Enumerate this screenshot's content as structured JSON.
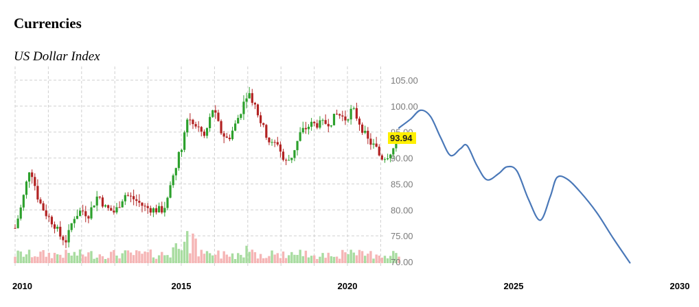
{
  "page": {
    "title": "Currencies",
    "subtitle": "US Dollar Index"
  },
  "chart_data": {
    "type": "candlestick",
    "title": "US Dollar Index",
    "xlabel": "",
    "ylabel": "",
    "xlim": [
      2010,
      2030
    ],
    "ylim": [
      70,
      105
    ],
    "grid": true,
    "x_ticks": [
      "2010",
      "2015",
      "2020",
      "2025",
      "2030"
    ],
    "y_ticks": [
      "105.00",
      "100.00",
      "95.00",
      "90.00",
      "85.00",
      "80.00",
      "75.00",
      "70.00"
    ],
    "last_value_label": "93.94",
    "colors": {
      "up": "#2ca02c",
      "down": "#b22222",
      "volume_up": "#a8dca0",
      "volume_down": "#f5b5b5",
      "forecast": "#4a78b8",
      "last_value_bg": "#fff000"
    },
    "price_anchors": [
      [
        2010.0,
        76.5
      ],
      [
        2010.2,
        81.0
      ],
      [
        2010.45,
        88.5
      ],
      [
        2010.7,
        82.0
      ],
      [
        2010.9,
        79.5
      ],
      [
        2011.2,
        77.0
      ],
      [
        2011.35,
        75.0
      ],
      [
        2011.55,
        74.0
      ],
      [
        2011.75,
        78.5
      ],
      [
        2012.0,
        80.0
      ],
      [
        2012.2,
        79.0
      ],
      [
        2012.5,
        83.0
      ],
      [
        2012.7,
        80.5
      ],
      [
        2013.0,
        79.5
      ],
      [
        2013.3,
        83.0
      ],
      [
        2013.6,
        82.0
      ],
      [
        2013.9,
        80.5
      ],
      [
        2014.2,
        80.0
      ],
      [
        2014.45,
        80.0
      ],
      [
        2014.6,
        82.0
      ],
      [
        2014.8,
        88.0
      ],
      [
        2015.0,
        92.0
      ],
      [
        2015.2,
        98.0
      ],
      [
        2015.5,
        96.0
      ],
      [
        2015.7,
        94.0
      ],
      [
        2015.95,
        99.5
      ],
      [
        2016.2,
        95.0
      ],
      [
        2016.4,
        93.5
      ],
      [
        2016.6,
        96.0
      ],
      [
        2016.85,
        100.0
      ],
      [
        2017.0,
        103.0
      ],
      [
        2017.2,
        100.5
      ],
      [
        2017.45,
        96.0
      ],
      [
        2017.7,
        92.5
      ],
      [
        2017.9,
        93.0
      ],
      [
        2018.1,
        89.0
      ],
      [
        2018.3,
        90.0
      ],
      [
        2018.6,
        95.0
      ],
      [
        2018.9,
        96.5
      ],
      [
        2019.2,
        96.5
      ],
      [
        2019.5,
        97.0
      ],
      [
        2019.7,
        98.5
      ],
      [
        2019.95,
        97.5
      ],
      [
        2020.15,
        99.5
      ],
      [
        2020.35,
        97.0
      ],
      [
        2020.6,
        93.5
      ],
      [
        2020.85,
        92.0
      ],
      [
        2021.0,
        90.0
      ],
      [
        2021.2,
        90.5
      ],
      [
        2021.4,
        92.0
      ],
      [
        2021.55,
        93.94
      ]
    ],
    "forecast_series": [
      {
        "x": 2021.55,
        "y": 95.8
      },
      {
        "x": 2021.9,
        "y": 97.5
      },
      {
        "x": 2022.2,
        "y": 99.2
      },
      {
        "x": 2022.5,
        "y": 98.0
      },
      {
        "x": 2022.8,
        "y": 94.0
      },
      {
        "x": 2023.1,
        "y": 90.5
      },
      {
        "x": 2023.4,
        "y": 91.8
      },
      {
        "x": 2023.6,
        "y": 92.4
      },
      {
        "x": 2023.9,
        "y": 88.5
      },
      {
        "x": 2024.2,
        "y": 85.8
      },
      {
        "x": 2024.55,
        "y": 87.0
      },
      {
        "x": 2024.8,
        "y": 88.3
      },
      {
        "x": 2025.1,
        "y": 87.5
      },
      {
        "x": 2025.45,
        "y": 82.0
      },
      {
        "x": 2025.8,
        "y": 78.0
      },
      {
        "x": 2026.1,
        "y": 82.5
      },
      {
        "x": 2026.3,
        "y": 86.2
      },
      {
        "x": 2026.6,
        "y": 86.0
      },
      {
        "x": 2027.0,
        "y": 83.5
      },
      {
        "x": 2027.5,
        "y": 79.5
      },
      {
        "x": 2028.0,
        "y": 74.5
      },
      {
        "x": 2028.5,
        "y": 69.8
      }
    ]
  }
}
